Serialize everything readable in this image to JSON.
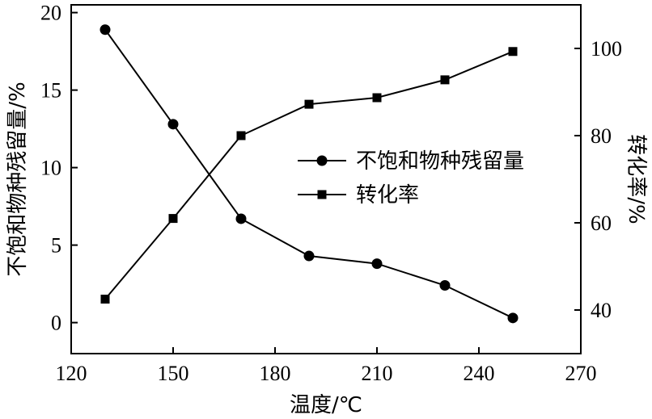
{
  "chart_data": {
    "type": "line",
    "xlabel": "温度/℃",
    "ylabel_left": "不饱和物种残留量/%",
    "ylabel_right": "转化率/%",
    "xlim": [
      120,
      270
    ],
    "xticks": [
      "120",
      "150",
      "180",
      "210",
      "240",
      "270"
    ],
    "ylim_left": [
      -2,
      20.5
    ],
    "yticks_left": [
      "0",
      "5",
      "10",
      "15",
      "20"
    ],
    "ylim_right": [
      30,
      110
    ],
    "yticks_right": [
      "40",
      "60",
      "80",
      "100"
    ],
    "grid": false,
    "legend_position": "right-center",
    "series": [
      {
        "name": "不饱和物种残留量",
        "axis": "left",
        "marker": "circle",
        "x": [
          130,
          150,
          170,
          190,
          210,
          230,
          250
        ],
        "y": [
          18.9,
          12.8,
          6.7,
          4.3,
          3.8,
          2.4,
          0.3
        ]
      },
      {
        "name": "转化率",
        "axis": "right",
        "marker": "square",
        "x": [
          130,
          150,
          170,
          190,
          210,
          230,
          250
        ],
        "y": [
          42.5,
          61,
          80,
          87.2,
          88.7,
          92.8,
          99.3
        ]
      }
    ]
  }
}
